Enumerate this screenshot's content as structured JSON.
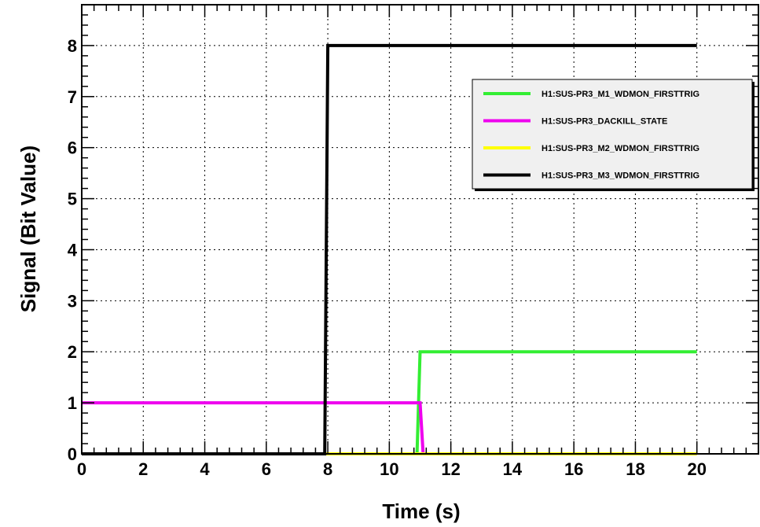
{
  "chart_data": {
    "type": "line",
    "title": "",
    "xlabel": "Time (s)",
    "ylabel": "Signal (Bit Value)",
    "xlim": [
      0,
      22
    ],
    "ylim": [
      0,
      8.8
    ],
    "x_ticks": [
      0,
      2,
      4,
      6,
      8,
      10,
      12,
      14,
      16,
      18,
      20
    ],
    "y_ticks": [
      0,
      1,
      2,
      3,
      4,
      5,
      6,
      7,
      8
    ],
    "grid": true,
    "grid_style": "dotted",
    "legend_position": "top-right",
    "series": [
      {
        "name": "H1:SUS-PR3_M1_WDMON_FIRSTTRIG",
        "color": "#33ee33",
        "points": [
          [
            0,
            0
          ],
          [
            10.9,
            0
          ],
          [
            11.0,
            2
          ],
          [
            20,
            2
          ]
        ]
      },
      {
        "name": "H1:SUS-PR3_DACKILL_STATE",
        "color": "#ee00ee",
        "points": [
          [
            0,
            1
          ],
          [
            11.0,
            1
          ],
          [
            11.1,
            0
          ],
          [
            20,
            0
          ]
        ]
      },
      {
        "name": "H1:SUS-PR3_M2_WDMON_FIRSTTRIG",
        "color": "#ffff00",
        "points": [
          [
            0,
            0
          ],
          [
            20,
            0
          ]
        ]
      },
      {
        "name": "H1:SUS-PR3_M3_WDMON_FIRSTTRIG",
        "color": "#000000",
        "points": [
          [
            0,
            0
          ],
          [
            7.9,
            0
          ],
          [
            8.0,
            8
          ],
          [
            20,
            8
          ]
        ]
      }
    ]
  }
}
